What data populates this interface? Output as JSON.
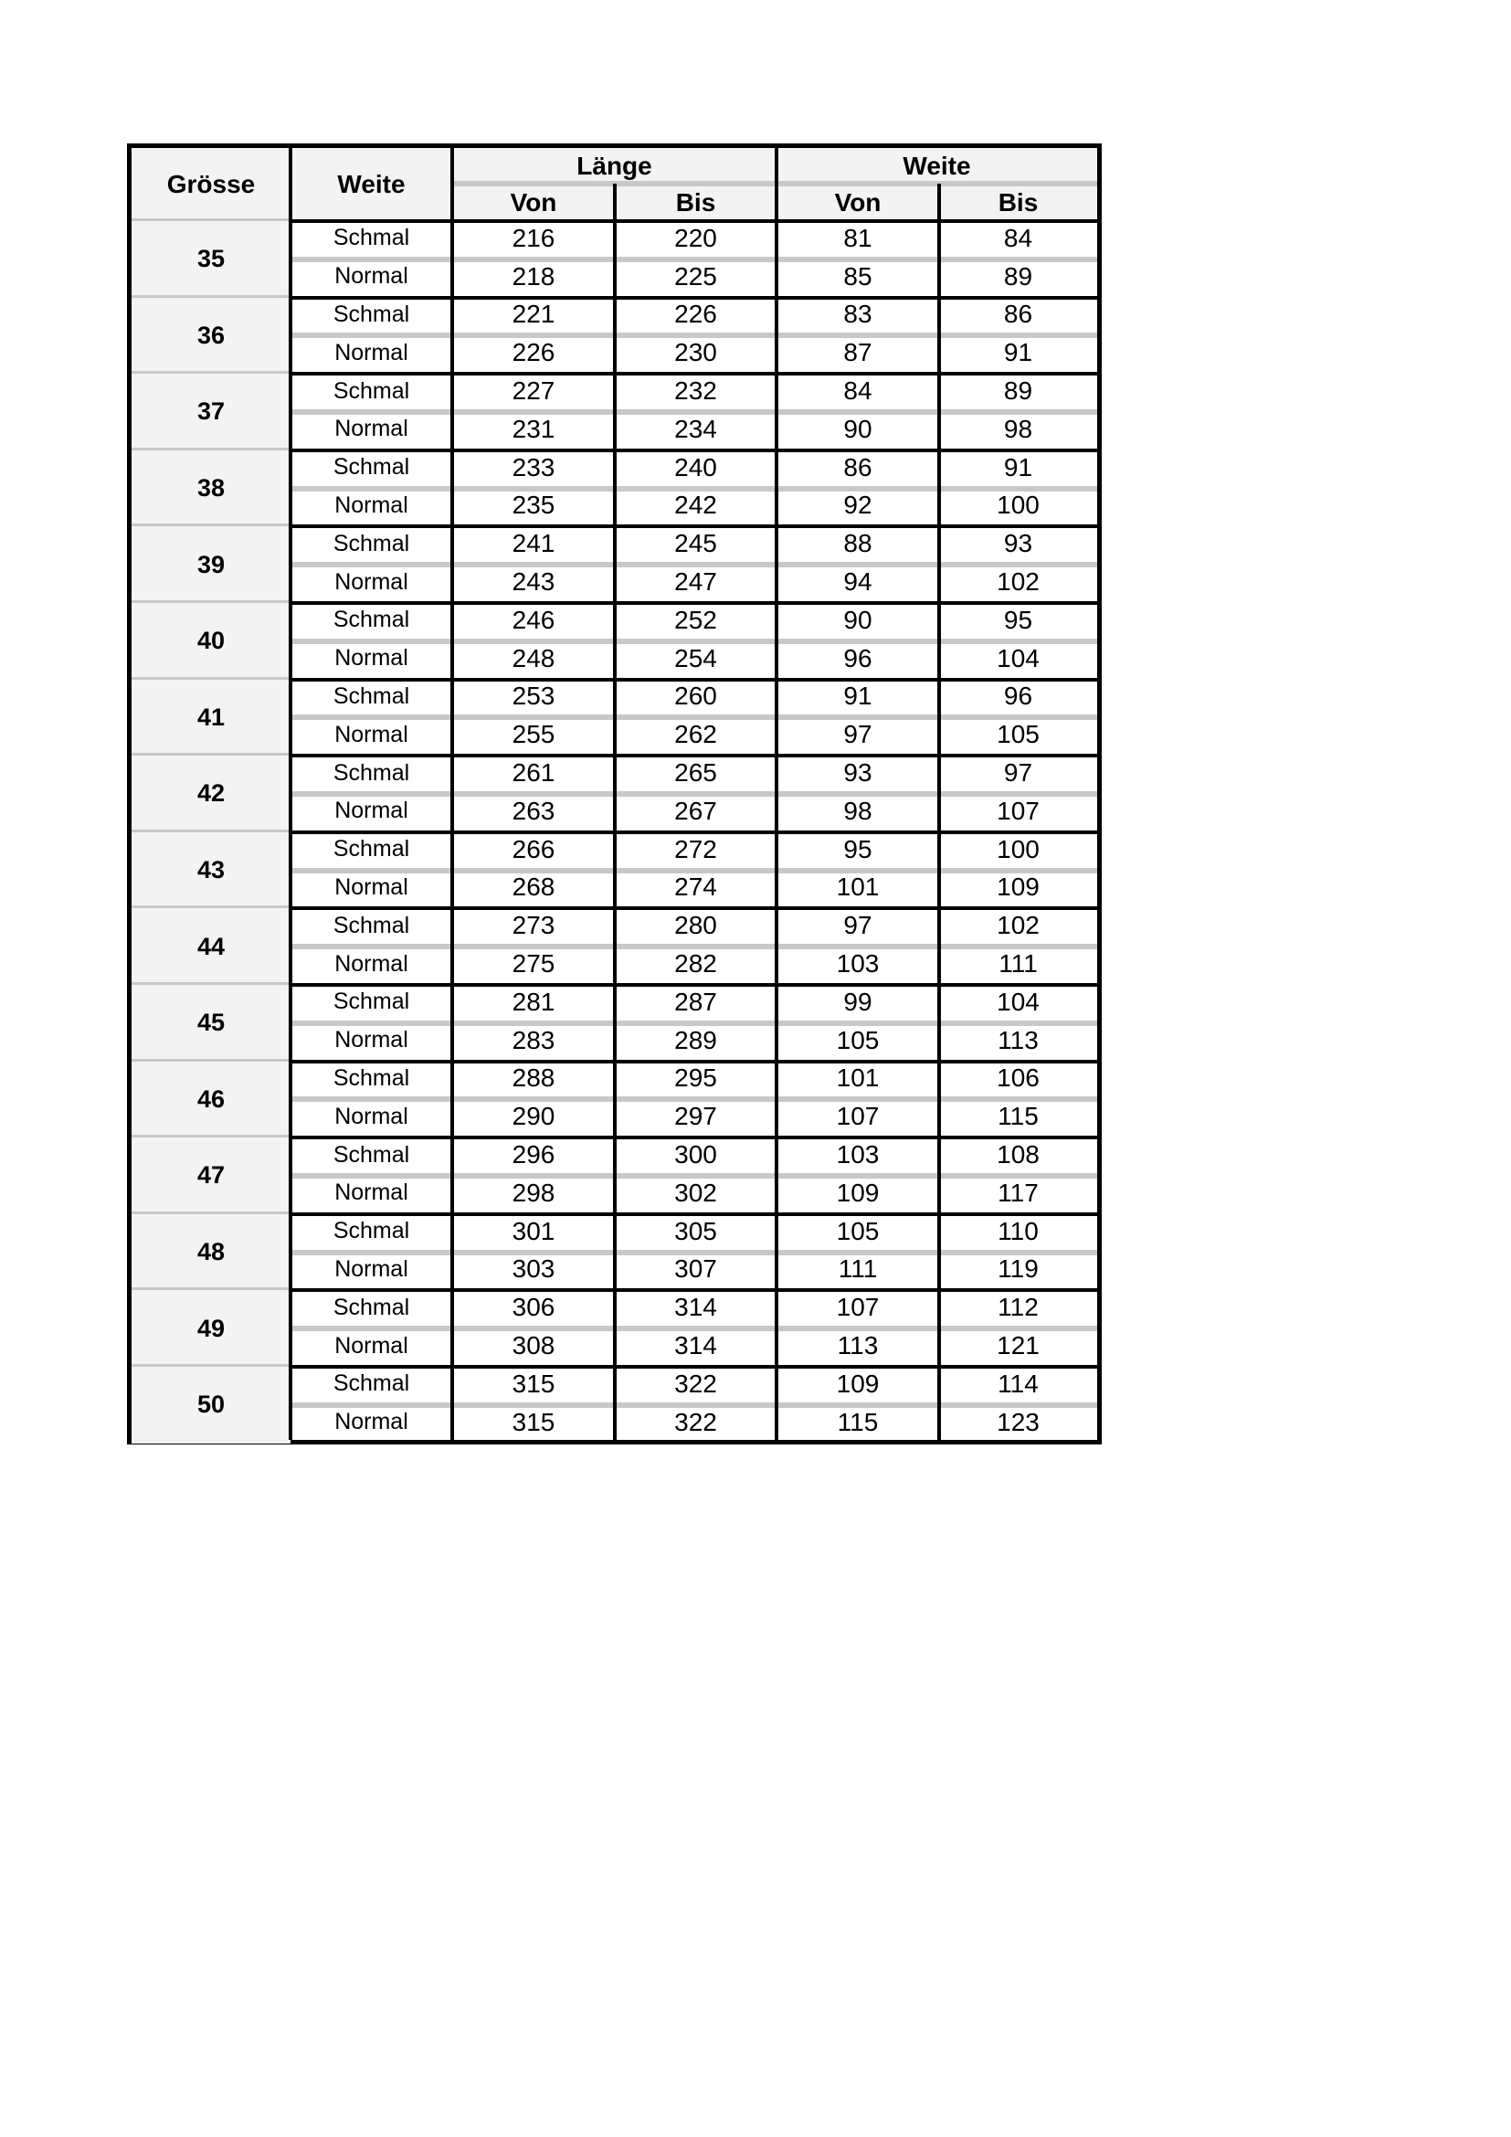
{
  "header": {
    "groesse": "Grösse",
    "weite": "Weite",
    "laenge": "Länge",
    "weite_group": "Weite",
    "von": "Von",
    "bis": "Bis"
  },
  "sizes": [
    {
      "size": "35",
      "rows": [
        [
          "Schmal",
          "216",
          "220",
          "81",
          "84"
        ],
        [
          "Normal",
          "218",
          "225",
          "85",
          "89"
        ]
      ]
    },
    {
      "size": "36",
      "rows": [
        [
          "Schmal",
          "221",
          "226",
          "83",
          "86"
        ],
        [
          "Normal",
          "226",
          "230",
          "87",
          "91"
        ]
      ]
    },
    {
      "size": "37",
      "rows": [
        [
          "Schmal",
          "227",
          "232",
          "84",
          "89"
        ],
        [
          "Normal",
          "231",
          "234",
          "90",
          "98"
        ]
      ]
    },
    {
      "size": "38",
      "rows": [
        [
          "Schmal",
          "233",
          "240",
          "86",
          "91"
        ],
        [
          "Normal",
          "235",
          "242",
          "92",
          "100"
        ]
      ]
    },
    {
      "size": "39",
      "rows": [
        [
          "Schmal",
          "241",
          "245",
          "88",
          "93"
        ],
        [
          "Normal",
          "243",
          "247",
          "94",
          "102"
        ]
      ]
    },
    {
      "size": "40",
      "rows": [
        [
          "Schmal",
          "246",
          "252",
          "90",
          "95"
        ],
        [
          "Normal",
          "248",
          "254",
          "96",
          "104"
        ]
      ]
    },
    {
      "size": "41",
      "rows": [
        [
          "Schmal",
          "253",
          "260",
          "91",
          "96"
        ],
        [
          "Normal",
          "255",
          "262",
          "97",
          "105"
        ]
      ]
    },
    {
      "size": "42",
      "rows": [
        [
          "Schmal",
          "261",
          "265",
          "93",
          "97"
        ],
        [
          "Normal",
          "263",
          "267",
          "98",
          "107"
        ]
      ]
    },
    {
      "size": "43",
      "rows": [
        [
          "Schmal",
          "266",
          "272",
          "95",
          "100"
        ],
        [
          "Normal",
          "268",
          "274",
          "101",
          "109"
        ]
      ]
    },
    {
      "size": "44",
      "rows": [
        [
          "Schmal",
          "273",
          "280",
          "97",
          "102"
        ],
        [
          "Normal",
          "275",
          "282",
          "103",
          "111"
        ]
      ]
    },
    {
      "size": "45",
      "rows": [
        [
          "Schmal",
          "281",
          "287",
          "99",
          "104"
        ],
        [
          "Normal",
          "283",
          "289",
          "105",
          "113"
        ]
      ]
    },
    {
      "size": "46",
      "rows": [
        [
          "Schmal",
          "288",
          "295",
          "101",
          "106"
        ],
        [
          "Normal",
          "290",
          "297",
          "107",
          "115"
        ]
      ]
    },
    {
      "size": "47",
      "rows": [
        [
          "Schmal",
          "296",
          "300",
          "103",
          "108"
        ],
        [
          "Normal",
          "298",
          "302",
          "109",
          "117"
        ]
      ]
    },
    {
      "size": "48",
      "rows": [
        [
          "Schmal",
          "301",
          "305",
          "105",
          "110"
        ],
        [
          "Normal",
          "303",
          "307",
          "111",
          "119"
        ]
      ]
    },
    {
      "size": "49",
      "rows": [
        [
          "Schmal",
          "306",
          "314",
          "107",
          "112"
        ],
        [
          "Normal",
          "308",
          "314",
          "113",
          "121"
        ]
      ]
    },
    {
      "size": "50",
      "rows": [
        [
          "Schmal",
          "315",
          "322",
          "109",
          "114"
        ],
        [
          "Normal",
          "315",
          "322",
          "115",
          "123"
        ]
      ]
    }
  ]
}
